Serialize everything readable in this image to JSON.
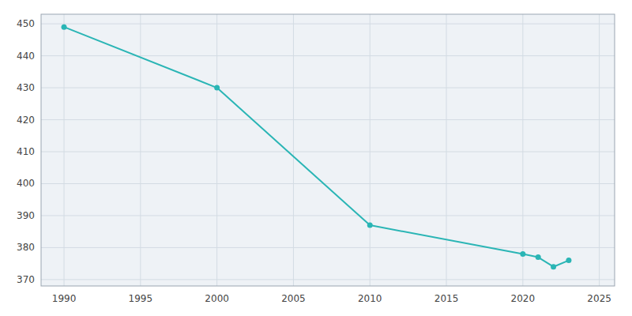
{
  "chart_data": {
    "type": "line",
    "x": [
      1990,
      2000,
      2010,
      2020,
      2021,
      2022,
      2023
    ],
    "values": [
      449,
      430,
      387,
      378,
      377,
      374,
      376
    ],
    "color": "#2ab5b5",
    "marker": "circle",
    "xlim": [
      1988.5,
      2026
    ],
    "ylim": [
      368,
      453
    ],
    "xticks": [
      1990,
      1995,
      2000,
      2005,
      2010,
      2015,
      2020,
      2025
    ],
    "yticks": [
      370,
      380,
      390,
      400,
      410,
      420,
      430,
      440,
      450
    ],
    "grid": true
  }
}
